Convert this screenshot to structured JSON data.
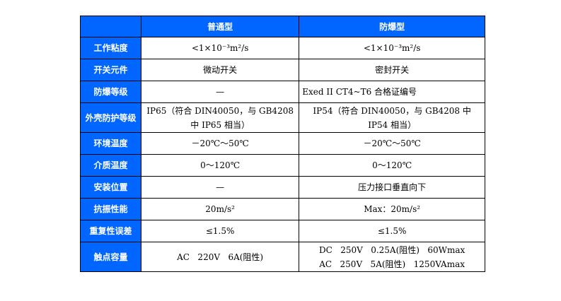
{
  "header": {
    "col1": "普通型",
    "col2": "防爆型"
  },
  "colors": {
    "header_bg": "#0066ff"
  },
  "rows": [
    {
      "label": "工作粘度",
      "v1": "<1×10⁻³m²/s",
      "v2": "<1×10⁻³m²/s"
    },
    {
      "label": "开关元件",
      "v1": "微动开关",
      "v2": "密封开关"
    },
    {
      "label": "防爆等级",
      "v1": "—",
      "v2": "Exed  II  CT4~T6  合格证编号"
    },
    {
      "label": "外壳防护等级",
      "v1": "IP65（符合 DIN40050，与 GB4208 中 IP65 相当）",
      "v2": "IP54（符合 DIN40050，与 GB4208 中 IP54 相当）"
    },
    {
      "label": "环境温度",
      "v1": "－20℃～50℃",
      "v2": "－20℃～50℃"
    },
    {
      "label": "介质温度",
      "v1": "0～120℃",
      "v2": "0～120℃"
    },
    {
      "label": "安装位置",
      "v1": "—",
      "v2": "压力接口垂直向下"
    },
    {
      "label": "抗振性能",
      "v1": "20m/s²",
      "v2": "Max：20m/s²"
    },
    {
      "label": "重复性误差",
      "v1": "≤1.5%",
      "v2": "≤1.5%"
    },
    {
      "label": "触点容量",
      "v1": "AC   220V   6A(阻性)",
      "v2a": "DC   250V   0.25A(阻性)   60Wmax",
      "v2b": "AC   250V   5A(阻性)   1250VAmax"
    }
  ]
}
